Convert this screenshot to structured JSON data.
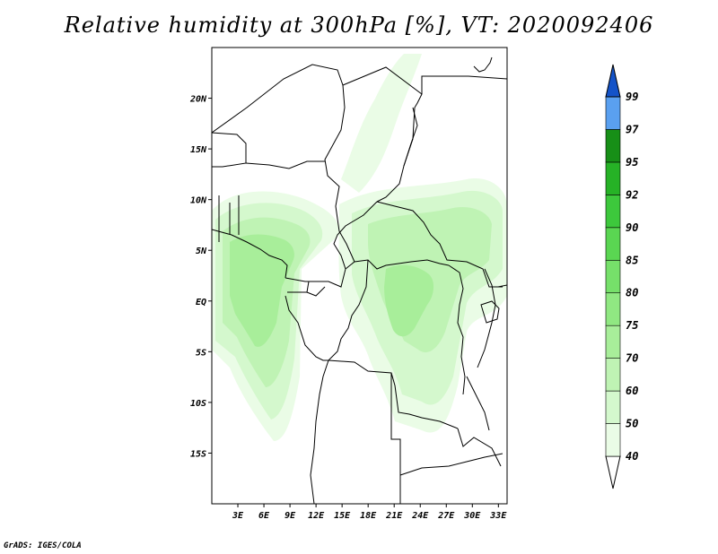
{
  "title": "Relative humidity at 300hPa [%], VT: 2020092406",
  "credit": "GrADS: IGES/COLA",
  "map": {
    "lon_range": [
      0,
      34
    ],
    "lat_range": [
      -20,
      25
    ],
    "lat_ticks": [
      {
        "value": 20,
        "label": "20N"
      },
      {
        "value": 15,
        "label": "15N"
      },
      {
        "value": 10,
        "label": "10N"
      },
      {
        "value": 5,
        "label": "5N"
      },
      {
        "value": 0,
        "label": "EQ"
      },
      {
        "value": -5,
        "label": "5S"
      },
      {
        "value": -10,
        "label": "10S"
      },
      {
        "value": -15,
        "label": "15S"
      }
    ],
    "lon_ticks": [
      {
        "value": 3,
        "label": "3E"
      },
      {
        "value": 6,
        "label": "6E"
      },
      {
        "value": 9,
        "label": "9E"
      },
      {
        "value": 12,
        "label": "12E"
      },
      {
        "value": 15,
        "label": "15E"
      },
      {
        "value": 18,
        "label": "18E"
      },
      {
        "value": 21,
        "label": "21E"
      },
      {
        "value": 24,
        "label": "24E"
      },
      {
        "value": 27,
        "label": "27E"
      },
      {
        "value": 30,
        "label": "30E"
      },
      {
        "value": 33,
        "label": "33E"
      }
    ]
  },
  "colorbar": {
    "levels": [
      "40",
      "50",
      "60",
      "70",
      "75",
      "80",
      "85",
      "90",
      "92",
      "95",
      "97",
      "99"
    ],
    "colors": [
      "#eafce6",
      "#d4f8cd",
      "#bff3b4",
      "#a8ee9a",
      "#90e882",
      "#76e06a",
      "#5ad652",
      "#3dc83c",
      "#26b226",
      "#178f17",
      "#5aa0f0",
      "#2a78e0",
      "#1453c8"
    ],
    "low_color": "#ffffff"
  },
  "chart_data": {
    "type": "heatmap",
    "title": "Relative humidity at 300hPa [%], VT: 2020092406",
    "variable": "Relative humidity",
    "units": "%",
    "level": "300hPa",
    "valid_time": "2020092406",
    "lon_range": [
      0,
      34
    ],
    "lat_range": [
      -20,
      25
    ],
    "contour_levels": [
      40,
      50,
      60,
      70,
      75,
      80,
      85,
      90,
      92,
      95,
      97,
      99
    ],
    "regions": [
      {
        "lon_min": 0,
        "lon_max": 14,
        "lat_min": 2,
        "lat_max": 10,
        "value": 60
      },
      {
        "lon_min": 0,
        "lon_max": 12,
        "lat_min": -12,
        "lat_max": 2,
        "value": 60
      },
      {
        "lon_min": 15,
        "lon_max": 34,
        "lat_min": 3,
        "lat_max": 11,
        "value": 60
      },
      {
        "lon_min": 17,
        "lon_max": 28,
        "lat_min": -12,
        "lat_max": 3,
        "value": 50
      },
      {
        "lon_min": 17,
        "lon_max": 23,
        "lat_min": 11,
        "lat_max": 24,
        "value": 40
      }
    ]
  }
}
